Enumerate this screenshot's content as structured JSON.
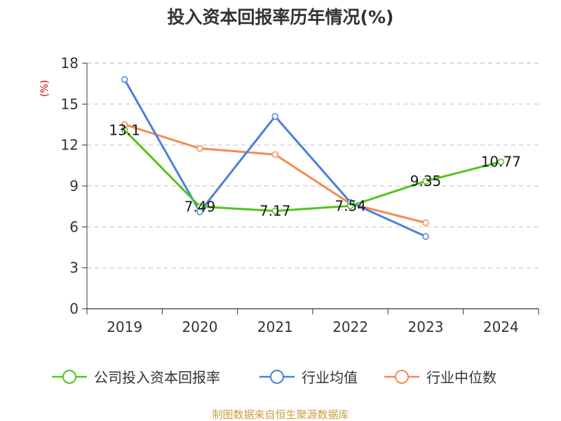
{
  "title": "投入资本回报率历年情况(%)",
  "source": "制图数据来自恒生聚源数据库",
  "chart_data": {
    "type": "line",
    "title": "投入资本回报率历年情况(%)",
    "ylabel": "(%)",
    "xlabel": "",
    "categories": [
      "2019",
      "2020",
      "2021",
      "2022",
      "2023",
      "2024"
    ],
    "ylim": [
      0,
      18
    ],
    "yticks": [
      0,
      3,
      6,
      9,
      12,
      15,
      18
    ],
    "grid": true,
    "legend_position": "bottom",
    "series": [
      {
        "name": "公司投入资本回报率",
        "color": "#52c41a",
        "values": [
          13.1,
          7.49,
          7.17,
          7.54,
          9.35,
          10.77
        ],
        "labels": [
          "13.1",
          "7.49",
          "7.17",
          "7.54",
          "9.35",
          "10.77"
        ]
      },
      {
        "name": "行业均值",
        "color": "#4a7fdc",
        "values": [
          16.8,
          7.1,
          14.1,
          7.8,
          5.3,
          null
        ]
      },
      {
        "name": "行业中位数",
        "color": "#f58a52",
        "values": [
          13.5,
          11.75,
          11.3,
          7.7,
          6.3,
          null
        ]
      }
    ]
  }
}
